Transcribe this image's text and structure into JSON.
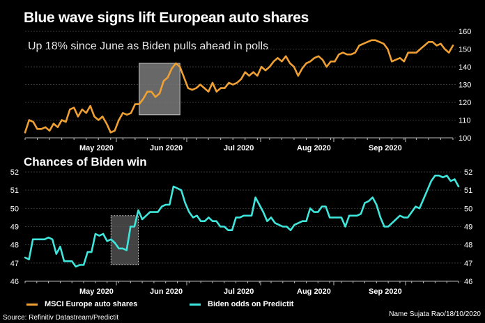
{
  "title": "Blue wave signs lift European auto shares",
  "subtitle": "Up 18% since June as Biden pulls ahead in polls",
  "lower_title": "Chances of Biden win",
  "source": "Source: Refinitiv Datastream/Predictit",
  "credit": "Name Sujata Rao/18/10/2020",
  "colors": {
    "orange": "#f0a033",
    "cyan": "#3fe6dc",
    "background": "#000000",
    "highlight": "#8a8a8a"
  },
  "chart_data": [
    {
      "type": "line",
      "title": "Blue wave signs lift European auto shares",
      "subtitle": "Up 18% since June as Biden pulls ahead in polls",
      "month_labels": [
        "May 2020",
        "Jun 2020",
        "Jul 2020",
        "Aug 2020",
        "Sep 2020"
      ],
      "y_ticks": [
        100,
        110,
        120,
        130,
        140,
        150,
        160
      ],
      "ylim": [
        100,
        160
      ],
      "y_axis_side": "right",
      "series": [
        {
          "name": "MSCI Europe auto shares",
          "color": "#f0a033",
          "values": [
            103,
            110,
            109,
            105,
            105,
            106,
            104,
            108,
            106,
            110,
            109,
            116,
            117,
            112,
            116,
            114,
            118,
            112,
            110,
            112,
            108,
            103,
            104,
            110,
            114,
            113,
            114,
            119,
            119,
            122,
            126,
            126,
            123,
            125,
            132,
            134,
            139,
            142,
            140,
            134,
            128,
            127,
            128,
            130,
            128,
            126,
            131,
            126,
            128,
            128,
            131,
            130,
            131,
            133,
            137,
            135,
            137,
            135,
            140,
            138,
            140,
            143,
            145,
            143,
            146,
            142,
            140,
            135,
            139,
            142,
            143,
            145,
            146,
            144,
            140,
            143,
            143,
            147,
            148,
            147,
            147,
            148,
            152,
            153,
            154,
            155,
            155,
            154,
            153,
            150,
            143,
            144,
            145,
            143,
            148,
            148,
            148,
            150,
            152,
            154,
            154,
            152,
            153,
            150,
            148,
            152
          ]
        }
      ],
      "highlight": {
        "from_index": 28,
        "to_index": 38,
        "ymin": 113,
        "ymax": 142
      }
    },
    {
      "type": "line",
      "title": "Chances of Biden win",
      "month_labels": [
        "May 2020",
        "Jun 2020",
        "Jul 2020",
        "Aug 2020",
        "Sep 2020"
      ],
      "y_ticks": [
        46,
        47,
        48,
        49,
        50,
        51,
        52
      ],
      "ylim": [
        46,
        52
      ],
      "y_axis_side": "both",
      "series": [
        {
          "name": "Biden odds on Predictit",
          "color": "#3fe6dc",
          "values": [
            47.3,
            47.2,
            48.3,
            48.3,
            48.3,
            48.3,
            48.4,
            48.3,
            47.5,
            47.9,
            47.1,
            47.1,
            47.1,
            46.8,
            46.9,
            46.9,
            47.6,
            47.6,
            48.6,
            48.5,
            48.6,
            48.2,
            48.3,
            48.1,
            47.8,
            47.8,
            47.7,
            49.0,
            49.0,
            49.9,
            49.4,
            49.6,
            49.8,
            49.8,
            49.8,
            50.1,
            50.2,
            50.2,
            51.2,
            51.1,
            51.0,
            50.3,
            49.8,
            49.5,
            49.6,
            49.3,
            49.3,
            49.5,
            49.3,
            49.3,
            49.0,
            49.0,
            48.8,
            48.8,
            49.5,
            49.5,
            49.6,
            49.6,
            49.6,
            50.6,
            50.2,
            49.8,
            49.3,
            49.5,
            49.2,
            49.1,
            49.0,
            49.0,
            48.8,
            49.1,
            49.2,
            49.3,
            49.3,
            50.0,
            49.8,
            49.8,
            50.1,
            50.1,
            49.5,
            49.5,
            49.5,
            49.5,
            49.0,
            49.6,
            49.6,
            49.6,
            49.7,
            50.3,
            50.4,
            50.6,
            50.2,
            49.5,
            49.0,
            49.0,
            49.2,
            49.4,
            49.6,
            49.5,
            49.5,
            49.8,
            50.1,
            50.0,
            50.5,
            51.0,
            51.5,
            51.8,
            51.8,
            51.7,
            51.8,
            51.5,
            51.6,
            51.2
          ]
        }
      ],
      "highlight": {
        "from_index": 22,
        "to_index": 29,
        "ymin": 46.9,
        "ymax": 49.6
      }
    }
  ],
  "legend": [
    {
      "label": "MSCI Europe auto shares",
      "color": "#f0a033"
    },
    {
      "label": "Biden odds on Predictit",
      "color": "#3fe6dc"
    }
  ]
}
